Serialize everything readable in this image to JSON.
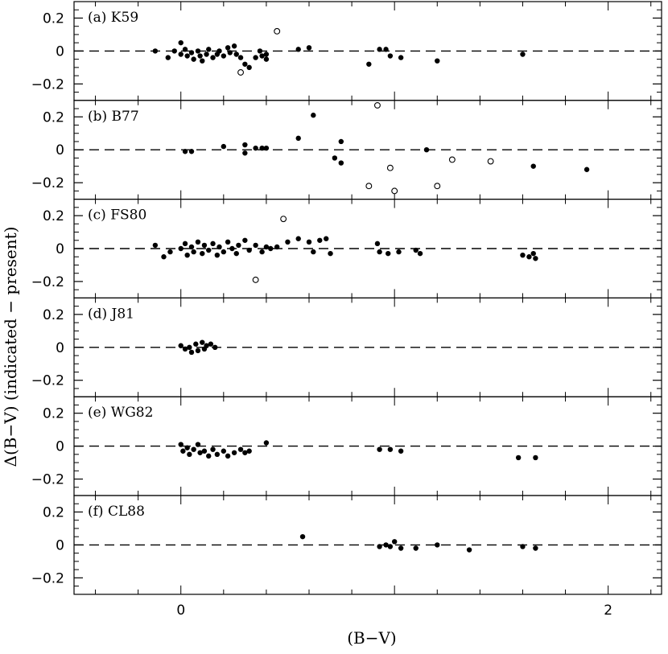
{
  "chart_data": {
    "type": "scatter",
    "xlabel": "(B−V)",
    "ylabel": "Δ(B−V) (indicated − present)",
    "xlim": [
      -0.5,
      2.25
    ],
    "x_ticks": [
      {
        "value": 0,
        "label": "0"
      },
      {
        "value": 2,
        "label": "2"
      }
    ],
    "ylim": [
      -0.3,
      0.3
    ],
    "y_ticks": [
      {
        "value": 0.2,
        "label": "0.2"
      },
      {
        "value": 0,
        "label": "0"
      },
      {
        "value": -0.2,
        "label": "−0.2"
      }
    ],
    "reference_line": {
      "y": 0,
      "style": "dashed"
    },
    "marker_legend": {
      "filled": "filled circle",
      "open": "open circle"
    },
    "panels": [
      {
        "label": "(a) K59",
        "filled": [
          [
            -0.12,
            0.0
          ],
          [
            -0.06,
            -0.04
          ],
          [
            -0.03,
            0.0
          ],
          [
            0.0,
            0.05
          ],
          [
            0.0,
            -0.02
          ],
          [
            0.02,
            0.01
          ],
          [
            0.03,
            -0.03
          ],
          [
            0.05,
            -0.01
          ],
          [
            0.06,
            -0.05
          ],
          [
            0.08,
            0.0
          ],
          [
            0.09,
            -0.03
          ],
          [
            0.1,
            -0.06
          ],
          [
            0.12,
            -0.02
          ],
          [
            0.13,
            0.01
          ],
          [
            0.15,
            -0.04
          ],
          [
            0.17,
            -0.02
          ],
          [
            0.18,
            0.0
          ],
          [
            0.2,
            -0.03
          ],
          [
            0.22,
            0.02
          ],
          [
            0.23,
            -0.01
          ],
          [
            0.25,
            0.03
          ],
          [
            0.26,
            -0.02
          ],
          [
            0.28,
            -0.04
          ],
          [
            0.3,
            -0.08
          ],
          [
            0.32,
            -0.1
          ],
          [
            0.35,
            -0.04
          ],
          [
            0.37,
            0.0
          ],
          [
            0.38,
            -0.03
          ],
          [
            0.4,
            -0.05
          ],
          [
            0.4,
            -0.02
          ],
          [
            0.55,
            0.01
          ],
          [
            0.6,
            0.02
          ],
          [
            0.88,
            -0.08
          ],
          [
            0.93,
            0.01
          ],
          [
            0.96,
            0.01
          ],
          [
            0.98,
            -0.03
          ],
          [
            1.03,
            -0.04
          ],
          [
            1.2,
            -0.06
          ],
          [
            1.6,
            -0.02
          ]
        ],
        "open": [
          [
            0.28,
            -0.13
          ],
          [
            0.45,
            0.12
          ]
        ]
      },
      {
        "label": "(b) B77",
        "filled": [
          [
            0.02,
            -0.01
          ],
          [
            0.05,
            -0.01
          ],
          [
            0.2,
            0.02
          ],
          [
            0.3,
            0.03
          ],
          [
            0.3,
            -0.02
          ],
          [
            0.35,
            0.01
          ],
          [
            0.38,
            0.01
          ],
          [
            0.4,
            0.01
          ],
          [
            0.55,
            0.07
          ],
          [
            0.62,
            0.21
          ],
          [
            0.72,
            -0.05
          ],
          [
            0.75,
            -0.08
          ],
          [
            0.75,
            0.05
          ],
          [
            1.15,
            0.0
          ],
          [
            1.65,
            -0.1
          ],
          [
            1.9,
            -0.12
          ]
        ],
        "open": [
          [
            0.88,
            -0.22
          ],
          [
            0.92,
            0.27
          ],
          [
            0.98,
            -0.11
          ],
          [
            1.0,
            -0.25
          ],
          [
            1.2,
            -0.22
          ],
          [
            1.27,
            -0.06
          ],
          [
            1.45,
            -0.07
          ]
        ]
      },
      {
        "label": "(c) FS80",
        "filled": [
          [
            -0.12,
            0.02
          ],
          [
            -0.08,
            -0.05
          ],
          [
            -0.05,
            -0.02
          ],
          [
            0.0,
            0.0
          ],
          [
            0.02,
            0.03
          ],
          [
            0.03,
            -0.04
          ],
          [
            0.05,
            0.01
          ],
          [
            0.06,
            -0.02
          ],
          [
            0.08,
            0.04
          ],
          [
            0.1,
            -0.03
          ],
          [
            0.11,
            0.02
          ],
          [
            0.13,
            -0.01
          ],
          [
            0.15,
            0.03
          ],
          [
            0.17,
            -0.04
          ],
          [
            0.18,
            0.01
          ],
          [
            0.2,
            -0.02
          ],
          [
            0.22,
            0.04
          ],
          [
            0.24,
            0.0
          ],
          [
            0.26,
            -0.03
          ],
          [
            0.27,
            0.02
          ],
          [
            0.3,
            0.05
          ],
          [
            0.32,
            -0.01
          ],
          [
            0.35,
            0.02
          ],
          [
            0.38,
            -0.02
          ],
          [
            0.4,
            0.01
          ],
          [
            0.42,
            0.0
          ],
          [
            0.45,
            0.01
          ],
          [
            0.5,
            0.04
          ],
          [
            0.55,
            0.06
          ],
          [
            0.6,
            0.04
          ],
          [
            0.62,
            -0.02
          ],
          [
            0.65,
            0.05
          ],
          [
            0.68,
            0.06
          ],
          [
            0.7,
            -0.03
          ],
          [
            0.92,
            0.03
          ],
          [
            0.93,
            -0.02
          ],
          [
            0.97,
            -0.03
          ],
          [
            1.02,
            -0.02
          ],
          [
            1.1,
            -0.01
          ],
          [
            1.12,
            -0.03
          ],
          [
            1.6,
            -0.04
          ],
          [
            1.63,
            -0.05
          ],
          [
            1.65,
            -0.03
          ],
          [
            1.66,
            -0.06
          ]
        ],
        "open": [
          [
            0.35,
            -0.19
          ],
          [
            0.48,
            0.18
          ]
        ]
      },
      {
        "label": "(d) J81",
        "filled": [
          [
            0.0,
            0.01
          ],
          [
            0.02,
            -0.01
          ],
          [
            0.04,
            0.0
          ],
          [
            0.05,
            -0.03
          ],
          [
            0.07,
            0.02
          ],
          [
            0.08,
            -0.02
          ],
          [
            0.1,
            0.03
          ],
          [
            0.11,
            -0.01
          ],
          [
            0.12,
            0.01
          ],
          [
            0.14,
            0.02
          ],
          [
            0.16,
            0.0
          ]
        ],
        "open": []
      },
      {
        "label": "(e) WG82",
        "filled": [
          [
            0.0,
            0.01
          ],
          [
            0.01,
            -0.03
          ],
          [
            0.03,
            -0.01
          ],
          [
            0.04,
            -0.05
          ],
          [
            0.06,
            -0.02
          ],
          [
            0.08,
            0.01
          ],
          [
            0.09,
            -0.04
          ],
          [
            0.11,
            -0.03
          ],
          [
            0.13,
            -0.06
          ],
          [
            0.15,
            -0.02
          ],
          [
            0.17,
            -0.05
          ],
          [
            0.2,
            -0.03
          ],
          [
            0.22,
            -0.06
          ],
          [
            0.25,
            -0.04
          ],
          [
            0.28,
            -0.02
          ],
          [
            0.3,
            -0.04
          ],
          [
            0.32,
            -0.03
          ],
          [
            0.4,
            0.02
          ],
          [
            0.93,
            -0.02
          ],
          [
            0.98,
            -0.02
          ],
          [
            1.03,
            -0.03
          ],
          [
            1.58,
            -0.07
          ],
          [
            1.66,
            -0.07
          ]
        ],
        "open": []
      },
      {
        "label": "(f) CL88",
        "filled": [
          [
            0.57,
            0.05
          ],
          [
            0.93,
            -0.01
          ],
          [
            0.96,
            0.0
          ],
          [
            0.98,
            -0.01
          ],
          [
            1.0,
            0.02
          ],
          [
            1.03,
            -0.02
          ],
          [
            1.1,
            -0.02
          ],
          [
            1.2,
            0.0
          ],
          [
            1.35,
            -0.03
          ],
          [
            1.6,
            -0.01
          ],
          [
            1.66,
            -0.02
          ]
        ],
        "open": []
      }
    ]
  }
}
